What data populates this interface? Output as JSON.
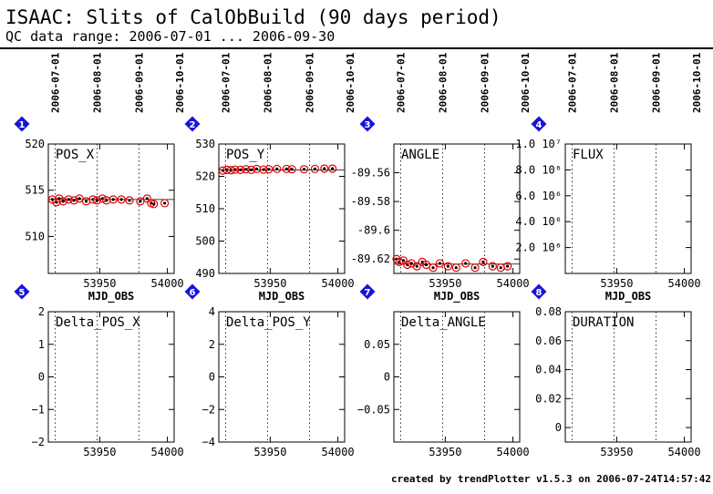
{
  "header": {
    "title": "ISAAC: Slits of CalObBuild (90 days period)",
    "subtitle": "QC data range: 2006-07-01 ... 2006-09-30"
  },
  "footer": "created by trendPlotter v1.5.3 on 2006-07-24T14:57:42",
  "colors": {
    "data_points": "#e00000",
    "badge": "#1515d8",
    "axes": "#000000"
  },
  "date_ticks": [
    {
      "label": "2006-07-01",
      "mjd": 53917
    },
    {
      "label": "2006-08-01",
      "mjd": 53948
    },
    {
      "label": "2006-09-01",
      "mjd": 53979
    },
    {
      "label": "2006-10-01",
      "mjd": 54009
    }
  ],
  "chart_data": [
    {
      "type": "scatter",
      "badge": "1",
      "title": "POS_X",
      "xlabel": "MJD_OBS",
      "xlim": [
        53912,
        54005
      ],
      "xticks": [
        53950,
        54000
      ],
      "xticklabels": [
        "53950",
        "54000"
      ],
      "ylim": [
        506,
        520
      ],
      "yticks": [
        510,
        515,
        520
      ],
      "yticklabels": [
        "510",
        "515",
        "520"
      ],
      "reference_line": 514,
      "points": [
        [
          53915,
          514.0
        ],
        [
          53918,
          513.7
        ],
        [
          53920,
          514.1
        ],
        [
          53923,
          513.8
        ],
        [
          53927,
          514.0
        ],
        [
          53931,
          513.9
        ],
        [
          53935,
          514.1
        ],
        [
          53940,
          513.8
        ],
        [
          53945,
          514.0
        ],
        [
          53948,
          513.9
        ],
        [
          53952,
          514.1
        ],
        [
          53955,
          513.9
        ],
        [
          53960,
          514.0
        ],
        [
          53966,
          514.0
        ],
        [
          53972,
          513.9
        ],
        [
          53980,
          513.8
        ],
        [
          53985,
          514.1
        ],
        [
          53988,
          513.6
        ],
        [
          53990,
          513.5
        ],
        [
          53998,
          513.6
        ]
      ]
    },
    {
      "type": "scatter",
      "badge": "2",
      "title": "POS_Y",
      "xlabel": "MJD_OBS",
      "xlim": [
        53912,
        54005
      ],
      "xticks": [
        53950,
        54000
      ],
      "xticklabels": [
        "53950",
        "54000"
      ],
      "ylim": [
        490,
        530
      ],
      "yticks": [
        490,
        500,
        510,
        520,
        530
      ],
      "yticklabels": [
        "490",
        "500",
        "510",
        "520",
        "530"
      ],
      "reference_line": 522,
      "points": [
        [
          53915,
          521.8
        ],
        [
          53918,
          522.0
        ],
        [
          53921,
          521.9
        ],
        [
          53924,
          522.1
        ],
        [
          53928,
          522.0
        ],
        [
          53932,
          522.2
        ],
        [
          53936,
          522.0
        ],
        [
          53940,
          522.3
        ],
        [
          53945,
          522.1
        ],
        [
          53949,
          522.2
        ],
        [
          53955,
          522.3
        ],
        [
          53962,
          522.3
        ],
        [
          53966,
          522.2
        ],
        [
          53975,
          522.2
        ],
        [
          53983,
          522.3
        ],
        [
          53990,
          522.4
        ],
        [
          53996,
          522.4
        ]
      ]
    },
    {
      "type": "scatter",
      "badge": "3",
      "title": "ANGLE",
      "xlabel": "MJD_OBS",
      "xlim": [
        53912,
        54005
      ],
      "xticks": [
        53950,
        54000
      ],
      "xticklabels": [
        "53950",
        "54000"
      ],
      "ylim": [
        -89.63,
        -89.54
      ],
      "yticks": [
        -89.56,
        -89.58,
        -89.6,
        -89.62
      ],
      "yticklabels": [
        "-89.56",
        "-89.58",
        "-89.6",
        "-89.62"
      ],
      "reference_line": -89.6235,
      "points": [
        [
          53914,
          -89.62
        ],
        [
          53916,
          -89.622
        ],
        [
          53919,
          -89.621
        ],
        [
          53922,
          -89.624
        ],
        [
          53925,
          -89.623
        ],
        [
          53929,
          -89.625
        ],
        [
          53933,
          -89.622
        ],
        [
          53936,
          -89.624
        ],
        [
          53941,
          -89.626
        ],
        [
          53946,
          -89.623
        ],
        [
          53952,
          -89.625
        ],
        [
          53958,
          -89.626
        ],
        [
          53965,
          -89.623
        ],
        [
          53972,
          -89.626
        ],
        [
          53978,
          -89.622
        ],
        [
          53985,
          -89.625
        ],
        [
          53991,
          -89.626
        ],
        [
          53996,
          -89.625
        ]
      ]
    },
    {
      "type": "scatter",
      "badge": "4",
      "title": "FLUX",
      "xlabel": "MJD_OBS",
      "xlim": [
        53912,
        54005
      ],
      "xticks": [
        53950,
        54000
      ],
      "xticklabels": [
        "53950",
        "54000"
      ],
      "ylim": [
        0,
        10000000
      ],
      "yticks": [
        2000000,
        4000000,
        6000000,
        8000000,
        10000000
      ],
      "yticklabels": [
        "2.0 10⁶",
        "4.0 10⁶",
        "6.0 10⁶",
        "8.0 10⁶",
        "1.0 10⁷"
      ],
      "reference_line": null,
      "points": []
    },
    {
      "type": "scatter",
      "badge": "5",
      "title": "Delta_POS_X",
      "xlabel": "",
      "xlim": [
        53912,
        54005
      ],
      "xticks": [
        53950,
        54000
      ],
      "xticklabels": [
        "53950",
        "54000"
      ],
      "ylim": [
        -2,
        2
      ],
      "yticks": [
        -2,
        -1,
        0,
        1,
        2
      ],
      "yticklabels": [
        "−2",
        "−1",
        "0",
        "1",
        "2"
      ],
      "reference_line": null,
      "points": []
    },
    {
      "type": "scatter",
      "badge": "6",
      "title": "Delta_POS_Y",
      "xlabel": "",
      "xlim": [
        53912,
        54005
      ],
      "xticks": [
        53950,
        54000
      ],
      "xticklabels": [
        "53950",
        "54000"
      ],
      "ylim": [
        -4,
        4
      ],
      "yticks": [
        -4,
        -2,
        0,
        2,
        4
      ],
      "yticklabels": [
        "−4",
        "−2",
        "0",
        "2",
        "4"
      ],
      "reference_line": null,
      "points": []
    },
    {
      "type": "scatter",
      "badge": "7",
      "title": "Delta_ANGLE",
      "xlabel": "",
      "xlim": [
        53912,
        54005
      ],
      "xticks": [
        53950,
        54000
      ],
      "xticklabels": [
        "53950",
        "54000"
      ],
      "ylim": [
        -0.1,
        0.1
      ],
      "yticks": [
        0.05,
        0,
        -0.05
      ],
      "yticklabels": [
        "0.05",
        "0",
        "−0.05"
      ],
      "reference_line": null,
      "points": []
    },
    {
      "type": "scatter",
      "badge": "8",
      "title": "DURATION",
      "xlabel": "",
      "xlim": [
        53912,
        54005
      ],
      "xticks": [
        53950,
        54000
      ],
      "xticklabels": [
        "53950",
        "54000"
      ],
      "ylim": [
        -0.01,
        0.08
      ],
      "yticks": [
        0,
        0.02,
        0.04,
        0.06,
        0.08
      ],
      "yticklabels": [
        "0",
        "0.02",
        "0.04",
        "0.06",
        "0.08"
      ],
      "reference_line": null,
      "points": []
    }
  ]
}
